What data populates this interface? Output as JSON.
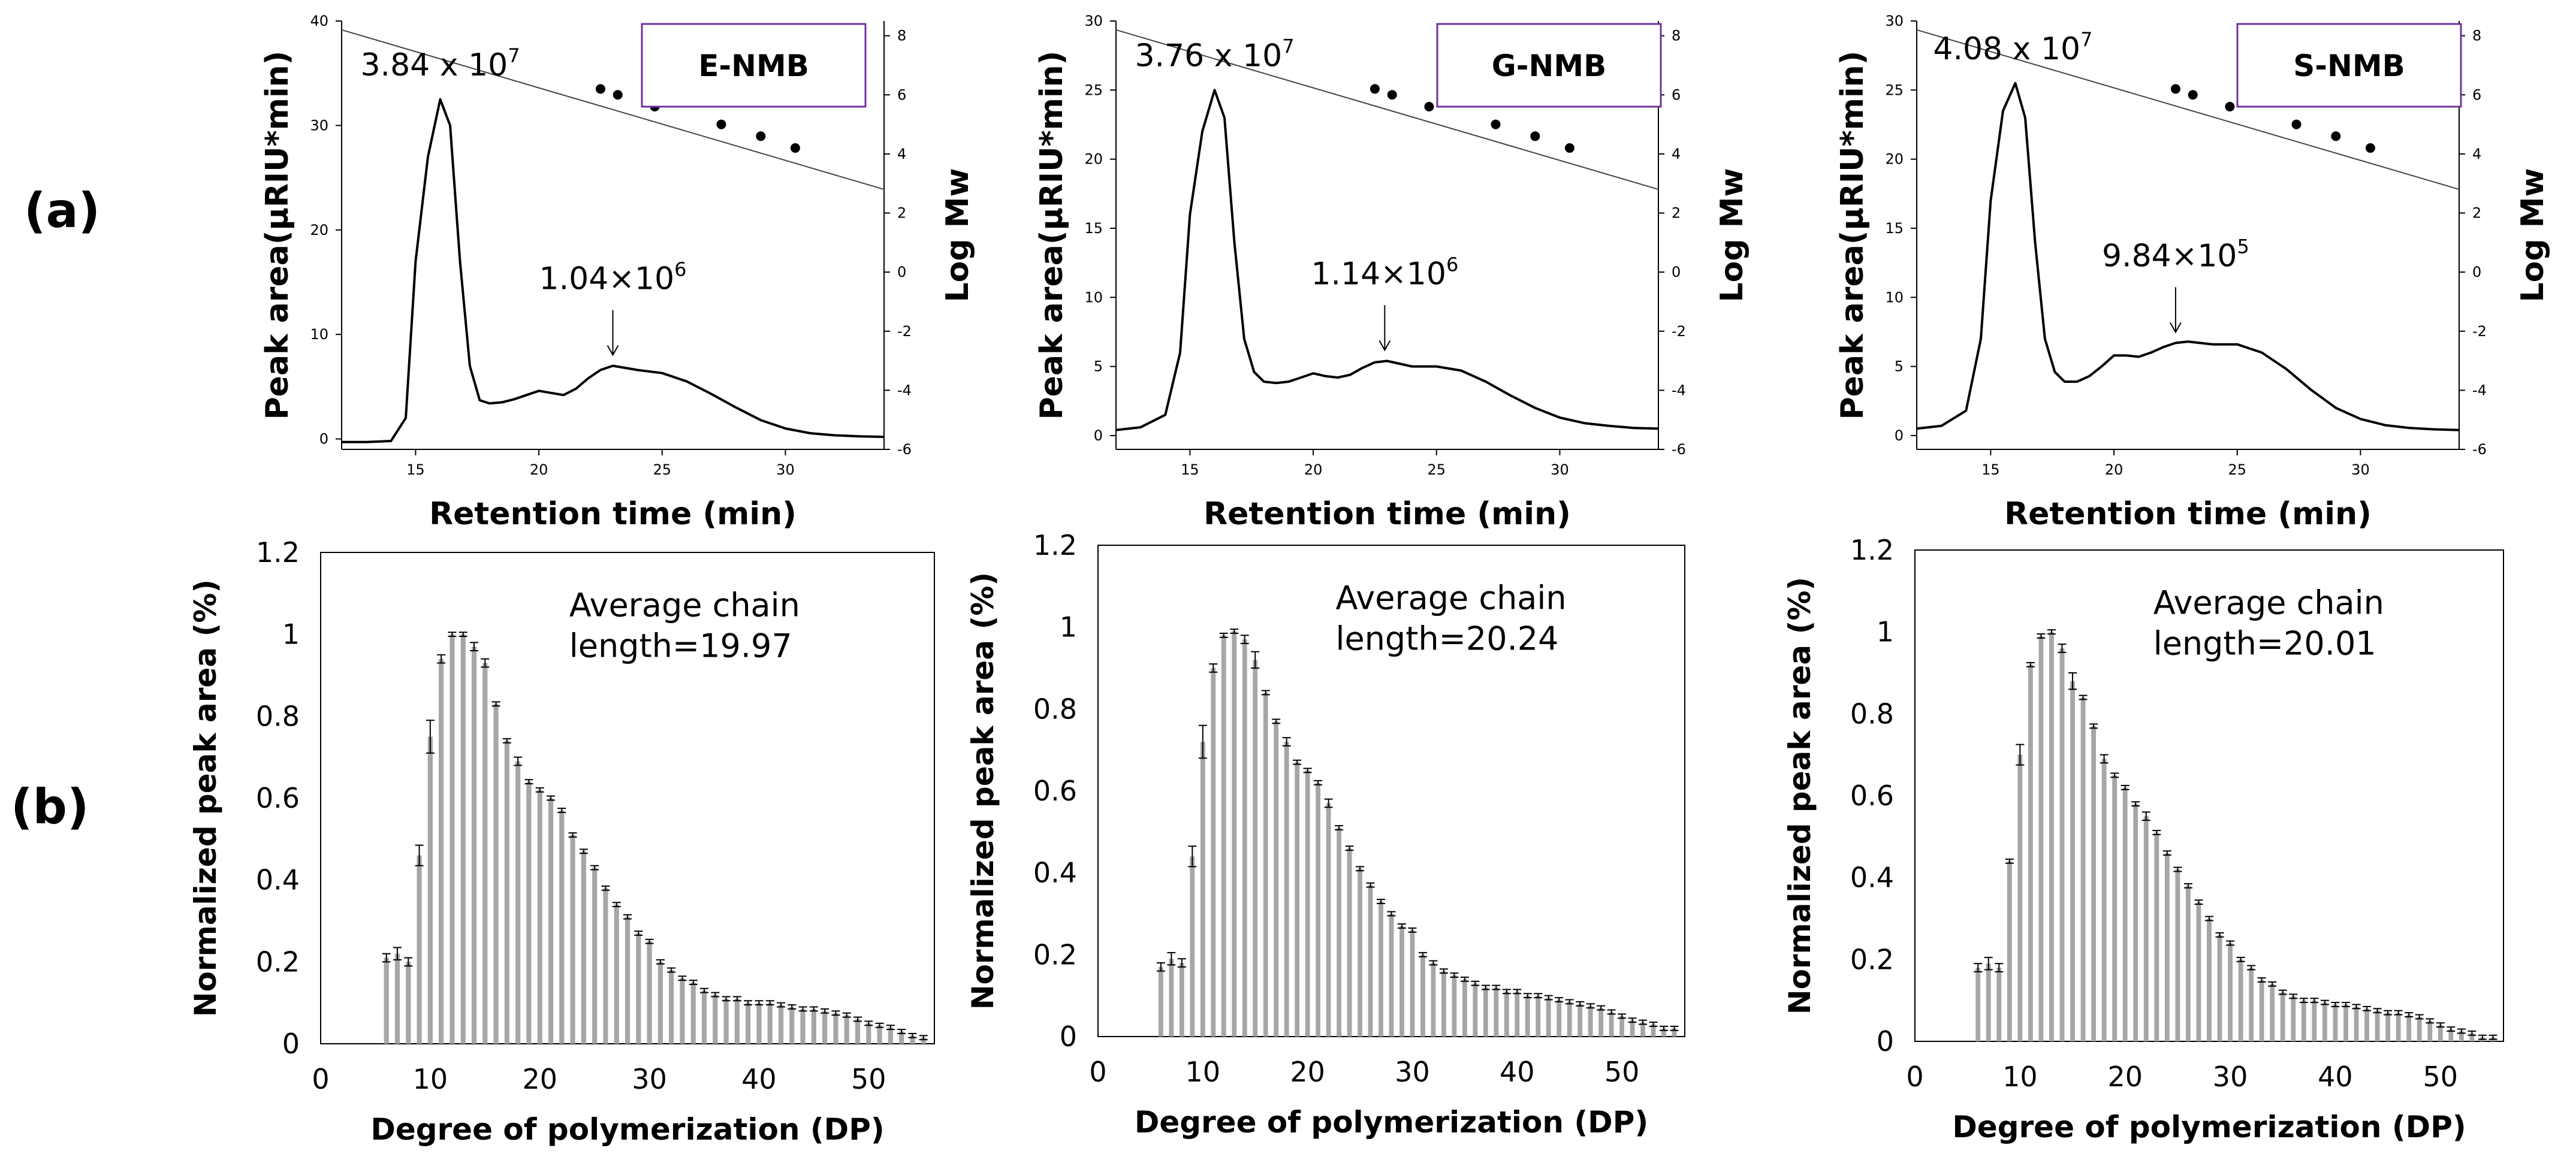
{
  "panel_labels": {
    "a": "(a)",
    "b": "(b)"
  },
  "colors": {
    "line": "#000000",
    "bar": "#a6a6a6",
    "box_border": "#7030a0",
    "frame": "#000000"
  },
  "chart_data": [
    {
      "id": "a1",
      "type": "line",
      "sample": "E-NMB",
      "xlabel": "Retention time (min)",
      "ylabel": "Peak area(μRIU*min)",
      "y2label": "Log Mw",
      "xlim": [
        12,
        34
      ],
      "ylim": [
        -1,
        40
      ],
      "y2lim": [
        -6,
        8.5
      ],
      "xticks": [
        15,
        20,
        25,
        30
      ],
      "yticks": [
        0,
        10,
        20,
        30,
        40
      ],
      "y2ticks": [
        -6,
        -4,
        -2,
        0,
        2,
        4,
        6,
        8
      ],
      "x": [
        12,
        13,
        14,
        14.6,
        15,
        15.5,
        16,
        16.4,
        16.8,
        17.2,
        17.6,
        18,
        18.5,
        19,
        19.5,
        20,
        20.5,
        21,
        21.5,
        22,
        22.5,
        23,
        23.5,
        24,
        25,
        26,
        27,
        28,
        29,
        30,
        31,
        32,
        33,
        34
      ],
      "y": [
        -0.3,
        -0.3,
        -0.2,
        2,
        17,
        27,
        32.5,
        30,
        17,
        7,
        3.7,
        3.4,
        3.5,
        3.8,
        4.2,
        4.6,
        4.4,
        4.2,
        4.8,
        5.8,
        6.6,
        7,
        6.8,
        6.6,
        6.3,
        5.5,
        4.3,
        3,
        1.8,
        1,
        0.55,
        0.35,
        0.25,
        0.2
      ],
      "calibration_line": {
        "x": [
          12,
          34
        ],
        "y": [
          8.2,
          2.8
        ]
      },
      "calibration_points": {
        "x": [
          22.5,
          23.2,
          24.7,
          27.4,
          29,
          30.4
        ],
        "y": [
          6.2,
          6.0,
          5.6,
          5.0,
          4.6,
          4.2
        ]
      },
      "peak1_label": {
        "text": "3.84 x 10",
        "exp": "7",
        "x": 16,
        "y": 32.5
      },
      "peak2_label": {
        "text": "1.04×10",
        "exp": "6",
        "x": 23.0,
        "y": 7
      }
    },
    {
      "id": "a2",
      "type": "line",
      "sample": "G-NMB",
      "xlabel": "Retention time (min)",
      "ylabel": "Peak area(μRIU*min)",
      "y2label": "Log Mw",
      "xlim": [
        12,
        34
      ],
      "ylim": [
        -1,
        30
      ],
      "y2lim": [
        -6,
        8.5
      ],
      "xticks": [
        15,
        20,
        25,
        30
      ],
      "yticks": [
        0,
        5,
        10,
        15,
        20,
        25,
        30
      ],
      "y2ticks": [
        -6,
        -4,
        -2,
        0,
        2,
        4,
        6,
        8
      ],
      "x": [
        12,
        13,
        14,
        14.6,
        15,
        15.5,
        16,
        16.4,
        16.8,
        17.2,
        17.6,
        18,
        18.5,
        19,
        19.5,
        20,
        20.5,
        21,
        21.5,
        22,
        22.5,
        23,
        23.5,
        24,
        25,
        26,
        27,
        28,
        29,
        30,
        31,
        32,
        33,
        34
      ],
      "y": [
        0.4,
        0.6,
        1.5,
        6,
        16,
        22,
        25,
        23,
        14,
        7,
        4.6,
        3.9,
        3.8,
        3.9,
        4.2,
        4.5,
        4.3,
        4.2,
        4.4,
        4.9,
        5.3,
        5.4,
        5.2,
        5,
        5,
        4.7,
        3.9,
        2.9,
        2,
        1.3,
        0.9,
        0.7,
        0.55,
        0.5
      ],
      "calibration_line": {
        "x": [
          12,
          34
        ],
        "y": [
          8.2,
          2.8
        ]
      },
      "calibration_points": {
        "x": [
          22.5,
          23.2,
          24.7,
          27.4,
          29,
          30.4
        ],
        "y": [
          6.2,
          6.0,
          5.6,
          5.0,
          4.6,
          4.2
        ]
      },
      "peak1_label": {
        "text": "3.76 x 10",
        "exp": "7",
        "x": 16,
        "y": 25
      },
      "peak2_label": {
        "text": "1.14×10",
        "exp": "6",
        "x": 22.9,
        "y": 5.4
      }
    },
    {
      "id": "a3",
      "type": "line",
      "sample": "S-NMB",
      "xlabel": "Retention time (min)",
      "ylabel": "Peak area(μRIU*min)",
      "y2label": "Log Mw",
      "xlim": [
        12,
        34
      ],
      "ylim": [
        -1,
        30
      ],
      "y2lim": [
        -6,
        8.5
      ],
      "xticks": [
        15,
        20,
        25,
        30
      ],
      "yticks": [
        0,
        5,
        10,
        15,
        20,
        25,
        30
      ],
      "y2ticks": [
        -6,
        -4,
        -2,
        0,
        2,
        4,
        6,
        8
      ],
      "x": [
        12,
        13,
        14,
        14.6,
        15,
        15.5,
        16,
        16.4,
        16.8,
        17.2,
        17.6,
        18,
        18.5,
        19,
        19.5,
        20,
        20.5,
        21,
        21.5,
        22,
        22.5,
        23,
        23.5,
        24,
        25,
        26,
        27,
        28,
        29,
        30,
        31,
        32,
        33,
        34
      ],
      "y": [
        0.5,
        0.7,
        1.8,
        7,
        17,
        23.5,
        25.5,
        23,
        14,
        7,
        4.6,
        3.9,
        3.9,
        4.3,
        5,
        5.8,
        5.8,
        5.7,
        6,
        6.4,
        6.7,
        6.8,
        6.7,
        6.6,
        6.6,
        6,
        4.8,
        3.3,
        2,
        1.2,
        0.75,
        0.55,
        0.45,
        0.4
      ],
      "calibration_line": {
        "x": [
          12,
          34
        ],
        "y": [
          8.2,
          2.8
        ]
      },
      "calibration_points": {
        "x": [
          22.5,
          23.2,
          24.7,
          27.4,
          29,
          30.4
        ],
        "y": [
          6.2,
          6.0,
          5.6,
          5.0,
          4.6,
          4.2
        ]
      },
      "peak1_label": {
        "text": "4.08 x 10",
        "exp": "7",
        "x": 15.9,
        "y": 25.5
      },
      "peak2_label": {
        "text": "9.84×10",
        "exp": "5",
        "x": 22.5,
        "y": 6.7
      }
    },
    {
      "id": "b1",
      "type": "bar",
      "sample": "E-NMB",
      "xlabel": "Degree of polymerization (DP)",
      "ylabel": "Normalized peak area (%)",
      "xlim": [
        0,
        56
      ],
      "ylim": [
        0,
        1.2
      ],
      "xticks": [
        0,
        10,
        20,
        30,
        40,
        50
      ],
      "yticks": [
        0,
        0.2,
        0.4,
        0.6,
        0.8,
        1,
        1.2
      ],
      "annotation": [
        "Average chain",
        "length=19.97"
      ],
      "x": [
        6,
        7,
        8,
        9,
        10,
        11,
        12,
        13,
        14,
        15,
        16,
        17,
        18,
        19,
        20,
        21,
        22,
        23,
        24,
        25,
        26,
        27,
        28,
        29,
        30,
        31,
        32,
        33,
        34,
        35,
        36,
        37,
        38,
        39,
        40,
        41,
        42,
        43,
        44,
        45,
        46,
        47,
        48,
        49,
        50,
        51,
        52,
        53,
        54,
        55
      ],
      "values": [
        0.21,
        0.22,
        0.2,
        0.46,
        0.75,
        0.94,
        1.0,
        1.0,
        0.97,
        0.93,
        0.83,
        0.74,
        0.69,
        0.64,
        0.62,
        0.6,
        0.57,
        0.51,
        0.47,
        0.43,
        0.38,
        0.34,
        0.31,
        0.27,
        0.25,
        0.2,
        0.18,
        0.16,
        0.15,
        0.13,
        0.12,
        0.11,
        0.11,
        0.1,
        0.1,
        0.1,
        0.095,
        0.09,
        0.085,
        0.085,
        0.08,
        0.075,
        0.07,
        0.06,
        0.05,
        0.045,
        0.04,
        0.03,
        0.02,
        0.015
      ],
      "errors": [
        0.01,
        0.015,
        0.01,
        0.025,
        0.04,
        0.01,
        0.005,
        0.005,
        0.01,
        0.01,
        0.005,
        0.005,
        0.01,
        0.005,
        0.005,
        0.005,
        0.005,
        0.005,
        0.005,
        0.005,
        0.005,
        0.005,
        0.005,
        0.005,
        0.005,
        0.005,
        0.005,
        0.005,
        0.005,
        0.005,
        0.005,
        0.005,
        0.005,
        0.005,
        0.005,
        0.005,
        0.005,
        0.005,
        0.005,
        0.005,
        0.005,
        0.005,
        0.005,
        0.005,
        0.005,
        0.005,
        0.005,
        0.005,
        0.005,
        0.005
      ]
    },
    {
      "id": "b2",
      "type": "bar",
      "sample": "G-NMB",
      "xlabel": "Degree of polymerization (DP)",
      "ylabel": "Normalized peak area (%)",
      "xlim": [
        0,
        56
      ],
      "ylim": [
        0,
        1.2
      ],
      "xticks": [
        0,
        10,
        20,
        30,
        40,
        50
      ],
      "yticks": [
        0,
        0.2,
        0.4,
        0.6,
        0.8,
        1,
        1.2
      ],
      "annotation": [
        "Average chain",
        "length=20.24"
      ],
      "x": [
        6,
        7,
        8,
        9,
        10,
        11,
        12,
        13,
        14,
        15,
        16,
        17,
        18,
        19,
        20,
        21,
        22,
        23,
        24,
        25,
        26,
        27,
        28,
        29,
        30,
        31,
        32,
        33,
        34,
        35,
        36,
        37,
        38,
        39,
        40,
        41,
        42,
        43,
        44,
        45,
        46,
        47,
        48,
        49,
        50,
        51,
        52,
        53,
        54,
        55
      ],
      "values": [
        0.17,
        0.19,
        0.18,
        0.44,
        0.72,
        0.9,
        0.98,
        0.99,
        0.97,
        0.92,
        0.84,
        0.77,
        0.72,
        0.67,
        0.65,
        0.62,
        0.57,
        0.51,
        0.46,
        0.41,
        0.37,
        0.33,
        0.3,
        0.27,
        0.26,
        0.2,
        0.18,
        0.16,
        0.15,
        0.14,
        0.13,
        0.12,
        0.12,
        0.11,
        0.11,
        0.1,
        0.1,
        0.095,
        0.09,
        0.085,
        0.08,
        0.075,
        0.07,
        0.06,
        0.05,
        0.04,
        0.035,
        0.03,
        0.02,
        0.02
      ],
      "errors": [
        0.01,
        0.015,
        0.01,
        0.025,
        0.04,
        0.01,
        0.005,
        0.005,
        0.01,
        0.02,
        0.005,
        0.005,
        0.01,
        0.005,
        0.005,
        0.005,
        0.01,
        0.005,
        0.005,
        0.005,
        0.005,
        0.005,
        0.005,
        0.005,
        0.005,
        0.005,
        0.005,
        0.005,
        0.005,
        0.005,
        0.005,
        0.005,
        0.005,
        0.005,
        0.005,
        0.005,
        0.005,
        0.005,
        0.005,
        0.005,
        0.005,
        0.005,
        0.005,
        0.005,
        0.005,
        0.005,
        0.005,
        0.005,
        0.005,
        0.005
      ]
    },
    {
      "id": "b3",
      "type": "bar",
      "sample": "S-NMB",
      "xlabel": "Degree of polymerization (DP)",
      "ylabel": "Normalized peak area (%)",
      "xlim": [
        0,
        56
      ],
      "ylim": [
        0,
        1.2
      ],
      "xticks": [
        0,
        10,
        20,
        30,
        40,
        50
      ],
      "yticks": [
        0,
        0.2,
        0.4,
        0.6,
        0.8,
        1,
        1.2
      ],
      "annotation": [
        "Average chain",
        "length=20.01"
      ],
      "x": [
        6,
        7,
        8,
        9,
        10,
        11,
        12,
        13,
        14,
        15,
        16,
        17,
        18,
        19,
        20,
        21,
        22,
        23,
        24,
        25,
        26,
        27,
        28,
        29,
        30,
        31,
        32,
        33,
        34,
        35,
        36,
        37,
        38,
        39,
        40,
        41,
        42,
        43,
        44,
        45,
        46,
        47,
        48,
        49,
        50,
        51,
        52,
        53,
        54,
        55
      ],
      "values": [
        0.18,
        0.19,
        0.18,
        0.44,
        0.7,
        0.92,
        0.99,
        1.0,
        0.96,
        0.88,
        0.84,
        0.77,
        0.69,
        0.65,
        0.62,
        0.58,
        0.55,
        0.51,
        0.46,
        0.42,
        0.38,
        0.34,
        0.3,
        0.26,
        0.24,
        0.2,
        0.18,
        0.15,
        0.14,
        0.12,
        0.11,
        0.1,
        0.1,
        0.095,
        0.09,
        0.09,
        0.085,
        0.08,
        0.075,
        0.07,
        0.07,
        0.065,
        0.06,
        0.05,
        0.04,
        0.03,
        0.025,
        0.02,
        0.01,
        0.01
      ],
      "errors": [
        0.01,
        0.015,
        0.01,
        0.005,
        0.025,
        0.005,
        0.005,
        0.005,
        0.01,
        0.02,
        0.005,
        0.005,
        0.01,
        0.005,
        0.005,
        0.005,
        0.01,
        0.005,
        0.005,
        0.005,
        0.005,
        0.005,
        0.005,
        0.005,
        0.005,
        0.005,
        0.005,
        0.005,
        0.005,
        0.005,
        0.005,
        0.005,
        0.005,
        0.005,
        0.005,
        0.005,
        0.005,
        0.005,
        0.005,
        0.005,
        0.005,
        0.005,
        0.005,
        0.005,
        0.005,
        0.005,
        0.005,
        0.005,
        0.005,
        0.005
      ]
    }
  ]
}
